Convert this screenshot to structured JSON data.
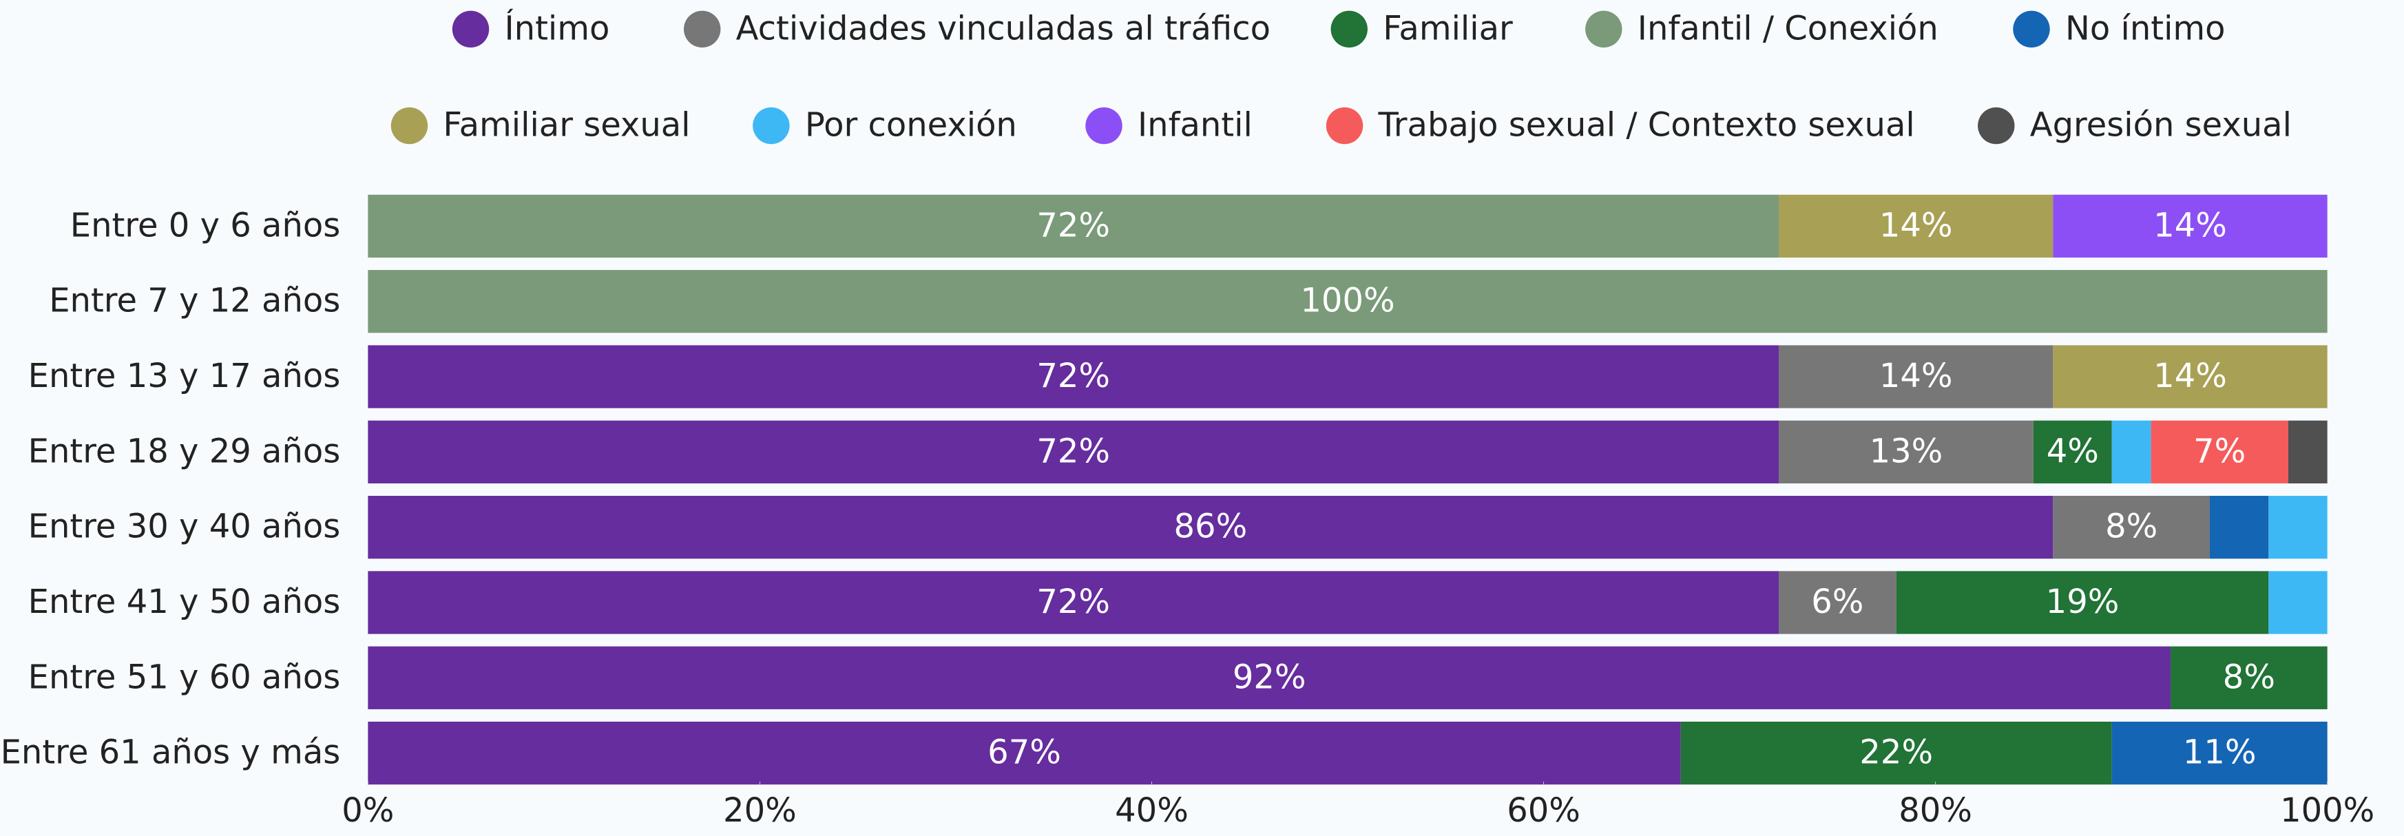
{
  "chart_data": {
    "type": "stacked-barh",
    "categories": [
      "Entre 0 y 6 años",
      "Entre 7 y 12 años",
      "Entre 13 y 17 años",
      "Entre 18 y 29 años",
      "Entre 30 y 40 años",
      "Entre 41 y 50 años",
      "Entre 51 y 60 años",
      "Entre 61 años y más"
    ],
    "series": [
      {
        "name": "Íntimo",
        "color": "#662d9e",
        "values": [
          null,
          null,
          72,
          72,
          86,
          72,
          92,
          67
        ],
        "value_labels": [
          null,
          null,
          "72%",
          "72%",
          "86%",
          "72%",
          "92%",
          "67%"
        ]
      },
      {
        "name": "Actividades vinculadas al tráfico",
        "color": "#777777",
        "values": [
          null,
          null,
          14,
          13,
          8,
          6,
          null,
          null
        ],
        "value_labels": [
          null,
          null,
          "14%",
          "13%",
          "8%",
          "6%",
          null,
          null
        ]
      },
      {
        "name": "Familiar",
        "color": "#217336",
        "values": [
          null,
          null,
          null,
          4,
          null,
          19,
          8,
          22
        ],
        "value_labels": [
          null,
          null,
          null,
          "4%",
          null,
          "19%",
          "8%",
          "22%"
        ]
      },
      {
        "name": "Infantil / Conexión",
        "color": "#7a9a7a",
        "values": [
          72,
          100,
          null,
          null,
          null,
          null,
          null,
          null
        ],
        "value_labels": [
          "72%",
          "100%",
          null,
          null,
          null,
          null,
          null,
          null
        ]
      },
      {
        "name": "No íntimo",
        "color": "#1565b5",
        "values": [
          null,
          null,
          null,
          null,
          3,
          null,
          null,
          11
        ],
        "value_labels": [
          null,
          null,
          null,
          null,
          null,
          null,
          null,
          "11%"
        ]
      },
      {
        "name": "Familiar sexual",
        "color": "#a8a055",
        "values": [
          14,
          null,
          14,
          null,
          null,
          null,
          null,
          null
        ],
        "value_labels": [
          "14%",
          null,
          "14%",
          null,
          null,
          null,
          null,
          null
        ]
      },
      {
        "name": "Por conexión",
        "color": "#3db8f5",
        "values": [
          null,
          null,
          null,
          2,
          3,
          3,
          null,
          null
        ],
        "value_labels": [
          null,
          null,
          null,
          null,
          null,
          null,
          null,
          null
        ]
      },
      {
        "name": "Infantil",
        "color": "#8c4ff5",
        "values": [
          14,
          null,
          null,
          null,
          null,
          null,
          null,
          null
        ],
        "value_labels": [
          "14%",
          null,
          null,
          null,
          null,
          null,
          null,
          null
        ]
      },
      {
        "name": "Trabajo sexual / Contexto sexual",
        "color": "#f55b5b",
        "values": [
          null,
          null,
          null,
          7,
          null,
          null,
          null,
          null
        ],
        "value_labels": [
          null,
          null,
          null,
          "7%",
          null,
          null,
          null,
          null
        ]
      },
      {
        "name": "Agresión sexual",
        "color": "#505050",
        "values": [
          null,
          null,
          null,
          2,
          null,
          null,
          null,
          null
        ],
        "value_labels": [
          null,
          null,
          null,
          null,
          null,
          null,
          null,
          null
        ]
      }
    ],
    "xlim": [
      0,
      100
    ],
    "xticks": [
      {
        "value": 0,
        "label": "0%"
      },
      {
        "value": 20,
        "label": "20%"
      },
      {
        "value": 40,
        "label": "40%"
      },
      {
        "value": 60,
        "label": "60%"
      },
      {
        "value": 80,
        "label": "80%"
      },
      {
        "value": 100,
        "label": "100%"
      }
    ],
    "legend": "top"
  }
}
